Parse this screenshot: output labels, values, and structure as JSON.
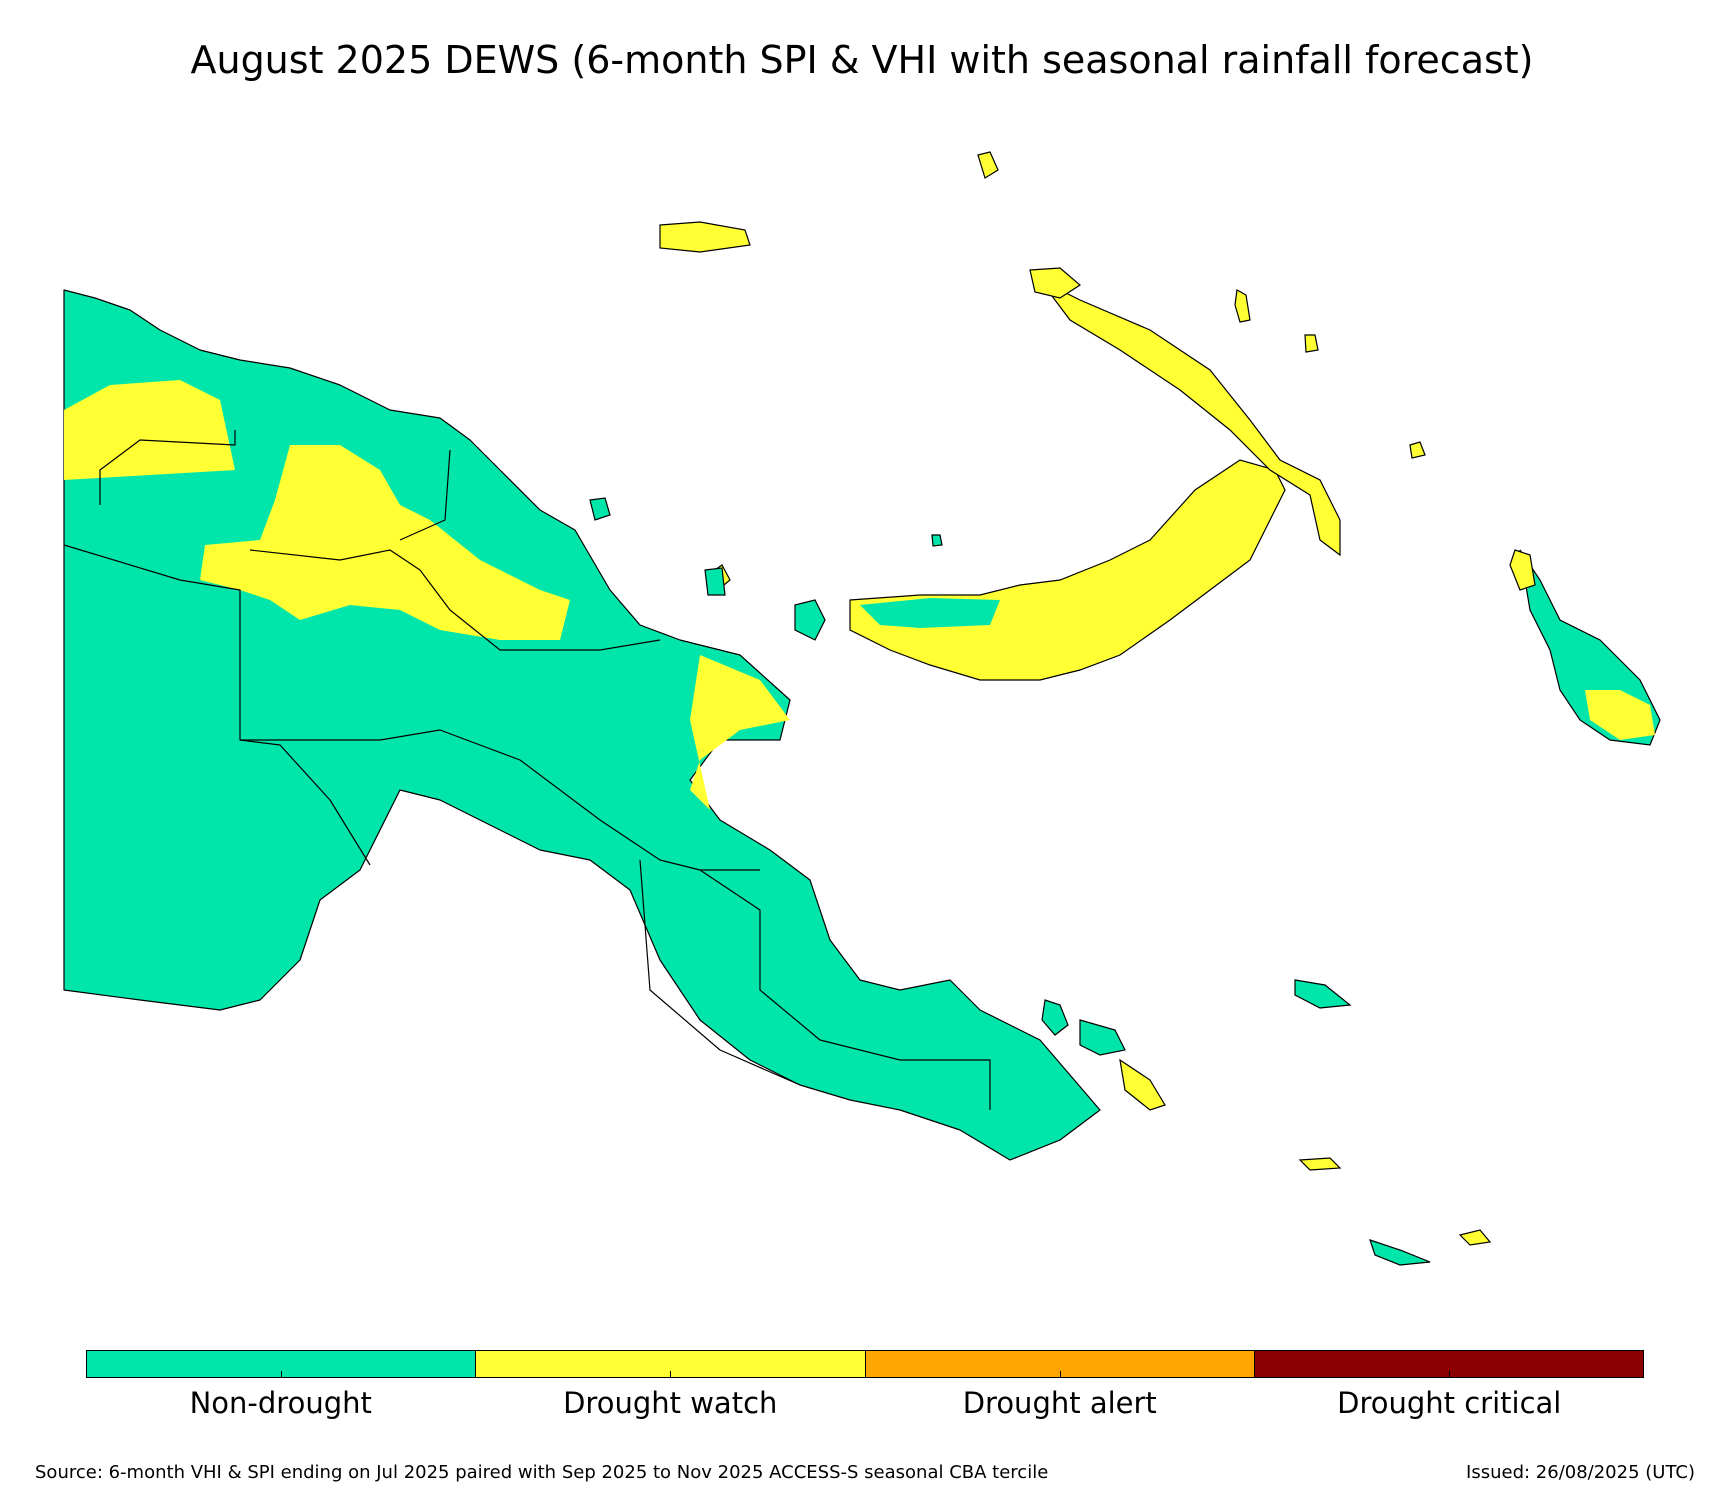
{
  "title": "August 2025 DEWS (6-month SPI & VHI with seasonal rainfall forecast)",
  "colors": {
    "non_drought": "#00e6aa",
    "drought_watch": "#ffff33",
    "drought_alert": "#ffa500",
    "drought_critical": "#8b0000"
  },
  "legend": [
    {
      "label": "Non-drought",
      "color": "#00e6aa"
    },
    {
      "label": "Drought watch",
      "color": "#ffff33"
    },
    {
      "label": "Drought alert",
      "color": "#ffa500"
    },
    {
      "label": "Drought critical",
      "color": "#8b0000"
    }
  ],
  "footer": {
    "source": "Source: 6-month VHI & SPI ending on Jul 2025 paired with Sep 2025 to Nov 2025 ACCESS-S seasonal CBA tercile",
    "issued": "Issued: 26/08/2025 (UTC)"
  }
}
